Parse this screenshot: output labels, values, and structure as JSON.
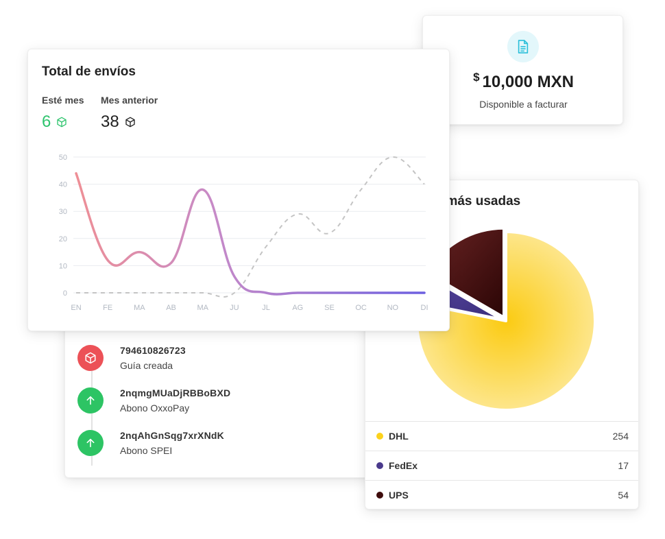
{
  "shipments_card": {
    "title": "Total de envíos",
    "this_month_label": "Esté mes",
    "this_month_value": "6",
    "last_month_label": "Mes anterior",
    "last_month_value": "38",
    "accent_color": "#2fc46e"
  },
  "chart_data": {
    "type": "line",
    "title": "",
    "xlabel": "",
    "ylabel": "",
    "categories": [
      "EN",
      "FE",
      "MA",
      "AB",
      "MA",
      "JU",
      "JL",
      "AG",
      "SE",
      "OC",
      "NO",
      "DI"
    ],
    "y_ticks": [
      "0",
      "10",
      "20",
      "30",
      "40",
      "50"
    ],
    "ylim": [
      0,
      50
    ],
    "grid": true,
    "series": [
      {
        "values": [
          44,
          12,
          15,
          11,
          38,
          6,
          0,
          0,
          0,
          0,
          0,
          0
        ],
        "style": "solid-gradient",
        "colors": [
          "#ee8f96",
          "#c68ac8",
          "#6c5fe0"
        ]
      },
      {
        "values": [
          0,
          0,
          0,
          0,
          0,
          0,
          17,
          29,
          22,
          38,
          50,
          40
        ],
        "style": "dashed",
        "colors": [
          "#c4c4c4"
        ]
      }
    ]
  },
  "balance_card": {
    "currency_symbol": "$",
    "amount": "10,000 MXN",
    "subtitle": "Disponible a facturar",
    "icon": "document-icon"
  },
  "carriers_card": {
    "title": "ns más usadas",
    "pie": [
      {
        "name": "DHL",
        "value": 254,
        "color": "#fcd21c"
      },
      {
        "name": "FedEx",
        "value": 17,
        "color": "#4a3a8c"
      },
      {
        "name": "UPS",
        "value": 54,
        "color": "#3e0c0c"
      }
    ],
    "legend": [
      {
        "name": "DHL",
        "value": "254",
        "color": "#fcd21c"
      },
      {
        "name": "FedEx",
        "value": "17",
        "color": "#4a3a8c"
      },
      {
        "name": "UPS",
        "value": "54",
        "color": "#3e0c0c"
      }
    ]
  },
  "activity_card": {
    "items": [
      {
        "title": "794610826723",
        "subtitle": "Guía creada",
        "icon": "package-icon",
        "color": "#ec5157"
      },
      {
        "title": "2nqmgMUaDjRBBoBXD",
        "subtitle": "Abono OxxoPay",
        "icon": "arrow-up-icon",
        "color": "#2dc464"
      },
      {
        "title": "2nqAhGnSqg7xrXNdK",
        "subtitle": "Abono SPEI",
        "icon": "arrow-up-icon",
        "color": "#2dc464"
      }
    ]
  }
}
